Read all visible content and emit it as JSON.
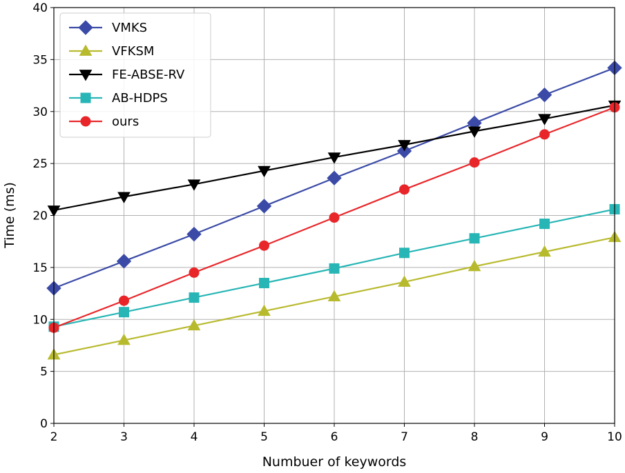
{
  "chart_data": {
    "type": "line",
    "title": "",
    "xlabel": "Numbuer of keywords",
    "ylabel": "Time (ms)",
    "x": [
      2,
      3,
      4,
      5,
      6,
      7,
      8,
      9,
      10
    ],
    "xlim": [
      2,
      10
    ],
    "ylim": [
      0,
      40
    ],
    "xticks": [
      "2",
      "3",
      "4",
      "5",
      "6",
      "7",
      "8",
      "9",
      "10"
    ],
    "yticks": [
      "0",
      "5",
      "10",
      "15",
      "20",
      "25",
      "30",
      "35",
      "40"
    ],
    "grid": true,
    "legend_position": "top-left",
    "series": [
      {
        "name": "VMKS",
        "color": "#3a4aa6",
        "marker": "diamond",
        "values": [
          13.0,
          15.6,
          18.2,
          20.9,
          23.6,
          26.2,
          28.9,
          31.6,
          34.2
        ]
      },
      {
        "name": "VFKSM",
        "color": "#b8ba2e",
        "marker": "triangle-up",
        "values": [
          6.6,
          8.0,
          9.4,
          10.8,
          12.2,
          13.6,
          15.1,
          16.5,
          17.9
        ]
      },
      {
        "name": "FE-ABSE-RV",
        "color": "#000000",
        "marker": "triangle-down",
        "values": [
          20.5,
          21.8,
          23.0,
          24.3,
          25.6,
          26.8,
          28.1,
          29.3,
          30.6
        ]
      },
      {
        "name": "AB-HDPS",
        "color": "#27b5b5",
        "marker": "square",
        "values": [
          9.3,
          10.7,
          12.1,
          13.5,
          14.9,
          16.4,
          17.8,
          19.2,
          20.6
        ]
      },
      {
        "name": "ours",
        "color": "#e8262a",
        "marker": "circle",
        "values": [
          9.2,
          11.8,
          14.5,
          17.1,
          19.8,
          22.5,
          25.1,
          27.8,
          30.4
        ]
      }
    ]
  }
}
